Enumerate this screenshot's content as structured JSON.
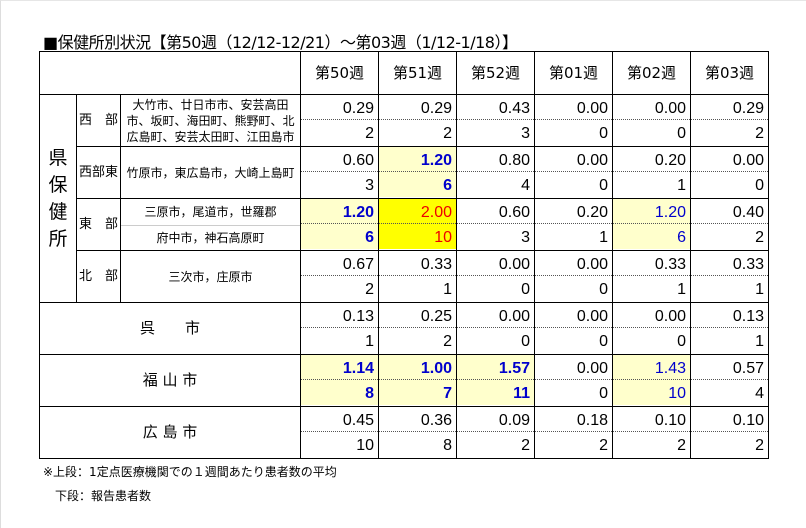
{
  "title": "■保健所別状況【第50週（12/12-12/21）～第03週（1/12-1/18）】",
  "weeks": [
    "第50週",
    "第51週",
    "第52週",
    "第01週",
    "第02週",
    "第03週"
  ],
  "prefectural_label": "県保健所",
  "rows": [
    {
      "region": "西　部",
      "areas": [
        "大竹市、廿日市市、安芸高田市、坂町、海田町、熊野町、北広島町、安芸太田町、江田島市"
      ],
      "rates": [
        "0.29",
        "0.29",
        "0.43",
        "0.00",
        "0.00",
        "0.29"
      ],
      "counts": [
        "2",
        "2",
        "3",
        "0",
        "0",
        "2"
      ],
      "highlight": [
        "",
        "",
        "",
        "",
        "",
        ""
      ]
    },
    {
      "region": "西部東",
      "areas": [
        "竹原市，東広島市，大崎上島町"
      ],
      "rates": [
        "0.60",
        "1.20",
        "0.80",
        "0.00",
        "0.20",
        "0.00"
      ],
      "counts": [
        "3",
        "6",
        "4",
        "0",
        "1",
        "0"
      ],
      "highlight": [
        "",
        "b",
        "",
        "",
        "",
        ""
      ]
    },
    {
      "region": "東　部",
      "areas": [
        "三原市，尾道市，世羅郡",
        "府中市，神石高原町"
      ],
      "rates": [
        "1.20",
        "2.00",
        "0.60",
        "0.20",
        "1.20",
        "0.40"
      ],
      "counts": [
        "6",
        "10",
        "3",
        "1",
        "6",
        "2"
      ],
      "highlight": [
        "b",
        "r",
        "",
        "",
        "l",
        ""
      ]
    },
    {
      "region": "北　部",
      "areas": [
        "三次市，庄原市"
      ],
      "rates": [
        "0.67",
        "0.33",
        "0.00",
        "0.00",
        "0.33",
        "0.33"
      ],
      "counts": [
        "2",
        "1",
        "0",
        "0",
        "1",
        "1"
      ],
      "highlight": [
        "",
        "",
        "",
        "",
        "",
        ""
      ]
    },
    {
      "region": "呉　　市",
      "areas": [],
      "rates": [
        "0.13",
        "0.25",
        "0.00",
        "0.00",
        "0.00",
        "0.13"
      ],
      "counts": [
        "1",
        "2",
        "0",
        "0",
        "0",
        "1"
      ],
      "highlight": [
        "",
        "",
        "",
        "",
        "",
        ""
      ]
    },
    {
      "region": "福 山 市",
      "areas": [],
      "rates": [
        "1.14",
        "1.00",
        "1.57",
        "0.00",
        "1.43",
        "0.57"
      ],
      "counts": [
        "8",
        "7",
        "11",
        "0",
        "10",
        "4"
      ],
      "highlight": [
        "b",
        "b",
        "b",
        "",
        "l",
        ""
      ]
    },
    {
      "region": "広 島 市",
      "areas": [],
      "rates": [
        "0.45",
        "0.36",
        "0.09",
        "0.18",
        "0.10",
        "0.10"
      ],
      "counts": [
        "10",
        "8",
        "2",
        "2",
        "2",
        "2"
      ],
      "highlight": [
        "",
        "",
        "",
        "",
        "",
        ""
      ]
    }
  ],
  "notes": [
    "※上段：1定点医療機関での１週間あたり患者数の平均",
    "下段：報告患者数"
  ],
  "colors": {
    "highlight_light": "#ffffcc",
    "highlight_strong": "#ffff00",
    "alert_text": "#ee0000",
    "elevated_text": "#0000cc"
  }
}
